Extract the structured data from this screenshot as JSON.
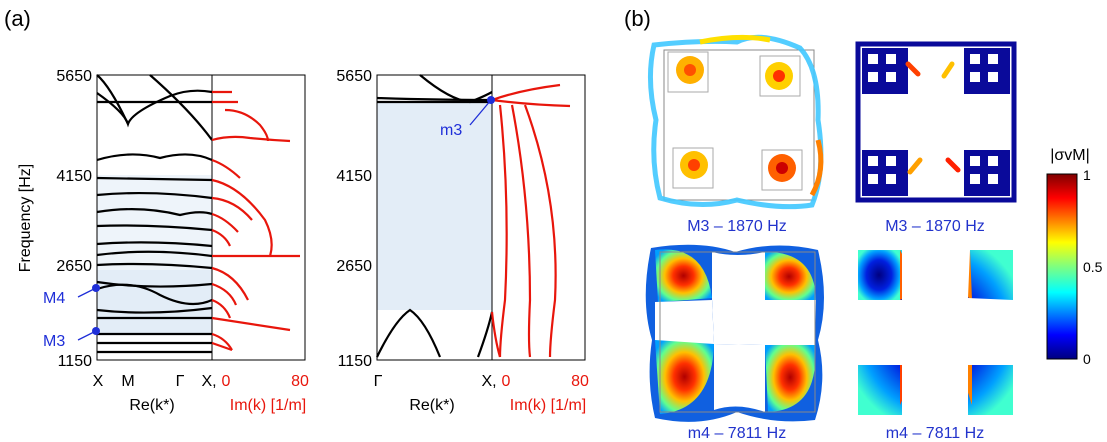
{
  "panel_a": {
    "label": "(a)",
    "ylabel": "Frequency [Hz]",
    "y_ticks": [
      "5650",
      "4150",
      "2650",
      "1150"
    ],
    "left_plot": {
      "k_ticks": [
        "X",
        "M",
        "Γ",
        "X,"
      ],
      "im_ticks": [
        "0",
        "80"
      ],
      "re_label": "Re(k*)",
      "im_label": "Im(k) [1/m]",
      "markers": [
        "M4",
        "M3"
      ],
      "bandgaps_hz": [
        [
          1400,
          1800
        ],
        [
          2250,
          2650
        ],
        [
          3250,
          4150
        ]
      ]
    },
    "right_plot": {
      "k_ticks": [
        "Γ",
        "X,"
      ],
      "im_ticks": [
        "0",
        "80"
      ],
      "re_label": "Re(k*)",
      "im_label": "Im(k) [1/m]",
      "marker": "m3",
      "bandgap_hz": [
        1950,
        5350
      ]
    }
  },
  "panel_b": {
    "label": "(b)",
    "captions": [
      "M3 – 1870 Hz",
      "M3 – 1870 Hz",
      "m4 – 7811 Hz",
      "m4 – 7811 Hz"
    ],
    "colorbar": {
      "title": "|σvM|",
      "ticks": [
        "1",
        "0.5",
        "0"
      ]
    }
  },
  "colors": {
    "band": "#000000",
    "imag": "#e8160c",
    "marker": "#1f2fd8",
    "gap": "#e3edf7",
    "caption": "#2233cc"
  }
}
